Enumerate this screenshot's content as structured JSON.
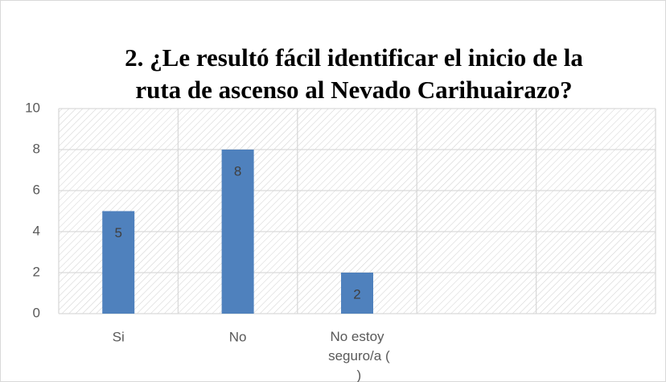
{
  "chart_data": {
    "type": "bar",
    "title": [
      "2. ¿Le resultó fácil identificar el inicio de la",
      "ruta de ascenso al Nevado Carihuairazo?"
    ],
    "categories": [
      "Si",
      "No",
      "No estoy seguro/a ( )",
      null,
      null
    ],
    "values": [
      5,
      8,
      2,
      null,
      null
    ],
    "color": "#4f81bd",
    "ylim": [
      0,
      10
    ],
    "yticks": [
      0,
      2,
      4,
      6,
      8,
      10
    ],
    "grid": true
  }
}
